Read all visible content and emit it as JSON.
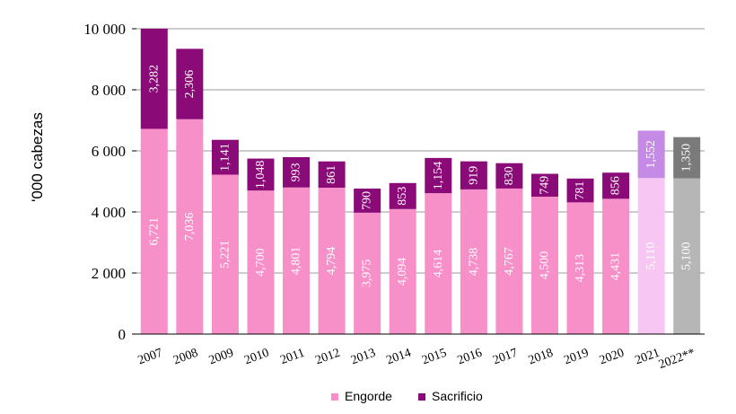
{
  "chart_data": {
    "type": "bar",
    "stacked": true,
    "title": "",
    "xlabel": "",
    "ylabel": "'000 cabezas",
    "ylim": [
      0,
      10000
    ],
    "yticks": [
      0,
      2000,
      4000,
      6000,
      8000,
      10000
    ],
    "ytick_labels": [
      "0",
      "2 000",
      "4 000",
      "6 000",
      "8 000",
      "10 000"
    ],
    "grid": "horizontal",
    "legend_position": "bottom",
    "categories": [
      "2007",
      "2008",
      "2009",
      "2010",
      "2011",
      "2012",
      "2013",
      "2014",
      "2015",
      "2016",
      "2017",
      "2018",
      "2019",
      "2020",
      "2021",
      "2022**"
    ],
    "series": [
      {
        "name": "Engorde",
        "values": [
          6721,
          7036,
          5221,
          4700,
          4801,
          4794,
          3975,
          4094,
          4614,
          4738,
          4767,
          4500,
          4313,
          4431,
          5110,
          5100
        ],
        "value_labels": [
          "6,721",
          "7,036",
          "5,221",
          "4,700",
          "4,801",
          "4,794",
          "3,975",
          "4,094",
          "4,614",
          "4,738",
          "4,767",
          "4,500",
          "4,313",
          "4,431",
          "5,110",
          "5,100"
        ]
      },
      {
        "name": "Sacrificio",
        "values": [
          3282,
          2306,
          1141,
          1048,
          993,
          861,
          790,
          853,
          1154,
          919,
          830,
          749,
          781,
          856,
          1552,
          1350
        ],
        "value_labels": [
          "3,282",
          "2,306",
          "1,141",
          "1,048",
          "993",
          "861",
          "790",
          "853",
          "1,154",
          "919",
          "830",
          "749",
          "781",
          "856",
          "1,552",
          "1,350"
        ]
      }
    ],
    "colors": {
      "engorde": "#f78fc8",
      "sacrificio": "#8a0a78",
      "engorde_2021": "#f7c6f3",
      "sacrificio_2021": "#c48ae6",
      "engorde_2022": "#b6b6b6",
      "sacrificio_2022": "#7a7a7a",
      "grid": "#999999",
      "axis": "#000000"
    }
  }
}
